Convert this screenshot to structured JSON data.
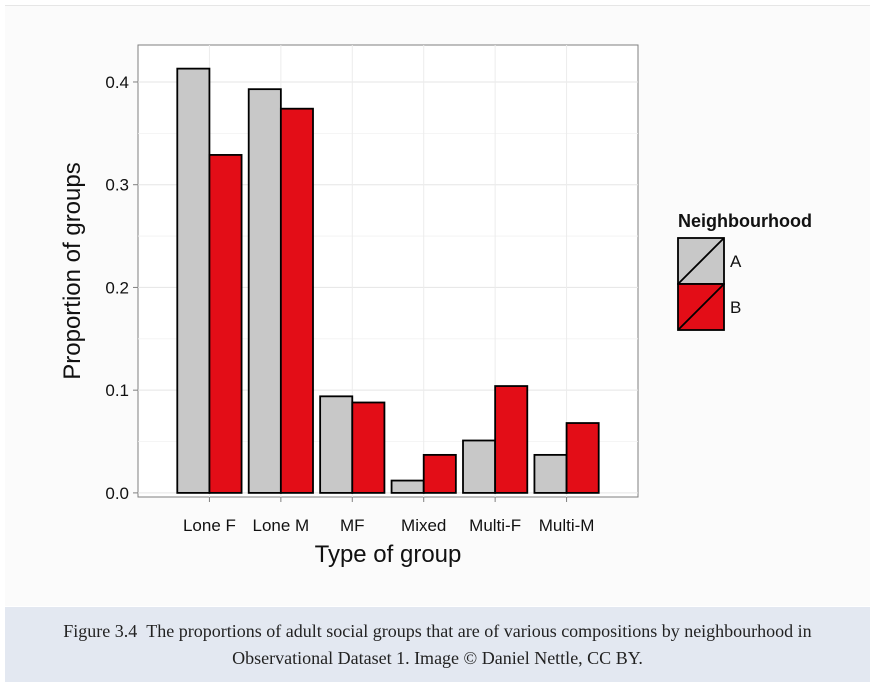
{
  "caption": {
    "label": "Figure 3.4",
    "text": "The proportions of adult social groups that are of various compositions by neighbourhood in Observational Dataset 1. Image © Daniel Nettle, CC BY."
  },
  "chart_data": {
    "type": "bar",
    "title": "",
    "xlabel": "Type of group",
    "ylabel": "Proportion of groups",
    "categories": [
      "Lone F",
      "Lone M",
      "MF",
      "Mixed",
      "Multi-F",
      "Multi-M"
    ],
    "series": [
      {
        "name": "A",
        "color": "#c8c8c8",
        "values": [
          0.413,
          0.393,
          0.094,
          0.012,
          0.051,
          0.037
        ]
      },
      {
        "name": "B",
        "color": "#e30d17",
        "values": [
          0.329,
          0.374,
          0.088,
          0.037,
          0.104,
          0.068
        ]
      }
    ],
    "ylim": [
      -0.004,
      0.436
    ],
    "yticks": [
      0.0,
      0.1,
      0.2,
      0.3,
      0.4
    ],
    "ytick_labels": [
      "0.0",
      "0.1",
      "0.2",
      "0.3",
      "0.4"
    ],
    "grid": true,
    "legend": {
      "title": "Neighbourhood",
      "position": "right"
    }
  }
}
